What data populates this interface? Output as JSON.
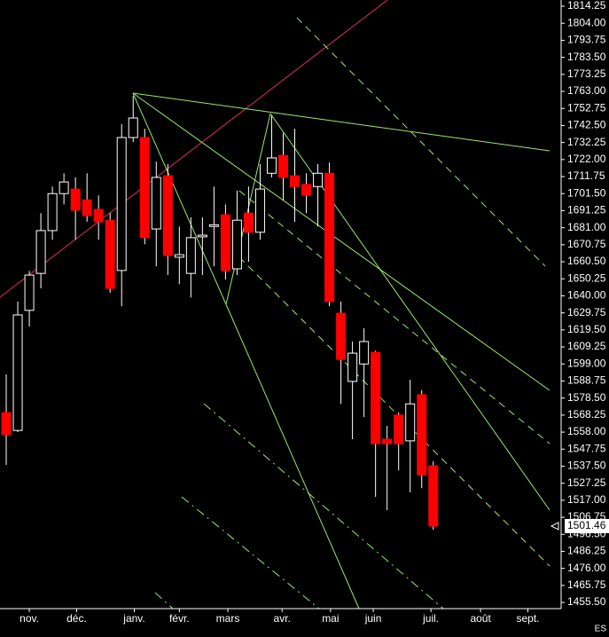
{
  "chart_data": {
    "type": "candlestick",
    "symbol": "ES",
    "last_price": 1501.46,
    "up_color": "#000000",
    "down_color": "#ff0000",
    "x": [
      0,
      1,
      2,
      3,
      4,
      5,
      6,
      7,
      8,
      9,
      10,
      11,
      12,
      13,
      14,
      15,
      16,
      17,
      18,
      19,
      20,
      21,
      22,
      23,
      24,
      25,
      26,
      27,
      28,
      29,
      30,
      31,
      32,
      33,
      34,
      35,
      36,
      37
    ],
    "open": [
      1569.75,
      1559,
      1631.25,
      1653.5,
      1679.25,
      1701.5,
      1704.25,
      1697.75,
      1692,
      1685.5,
      1655.25,
      1735.25,
      1735.25,
      1680.25,
      1712.25,
      1663.25,
      1653.5,
      1675.5,
      1681.75,
      1688.75,
      1656.25,
      1689.75,
      1678.25,
      1713.75,
      1724.5,
      1712.25,
      1707,
      1705.75,
      1713.75,
      1629.5,
      1588.5,
      1599,
      1606,
      1553.75,
      1568.25,
      1552.75,
      1580.5,
      1537.75
    ],
    "high": [
      1592.75,
      1636.5,
      1655,
      1689.75,
      1705.75,
      1713.75,
      1711.25,
      1713.75,
      1700.5,
      1689.75,
      1743.25,
      1760.25,
      1740.5,
      1720.75,
      1719.25,
      1681.75,
      1687.25,
      1687.25,
      1705.75,
      1695,
      1703.25,
      1705.75,
      1719.25,
      1748.5,
      1738,
      1740.5,
      1713.75,
      1719.25,
      1720.25,
      1636.5,
      1612.5,
      1620.5,
      1607,
      1561.75,
      1569.75,
      1589.5,
      1583.25,
      1540.5
    ],
    "low": [
      1538.25,
      1558,
      1621.5,
      1644.5,
      1673.75,
      1695,
      1673.75,
      1684.5,
      1673.75,
      1641.75,
      1633.75,
      1732.5,
      1671,
      1657.75,
      1652.5,
      1647,
      1639,
      1652.5,
      1657.75,
      1649.75,
      1652.5,
      1660.5,
      1673.75,
      1711.25,
      1697.75,
      1684.5,
      1689.75,
      1681.75,
      1633.75,
      1575,
      1553.75,
      1567,
      1519,
      1511,
      1535,
      1521.75,
      1524.25,
      1499.25
    ],
    "close": [
      1556.5,
      1628.5,
      1652.5,
      1679.25,
      1701.5,
      1708.5,
      1691.5,
      1688.25,
      1684.5,
      1644.5,
      1735.25,
      1747,
      1675,
      1711.25,
      1664.25,
      1664.75,
      1675,
      1676.5,
      1682.75,
      1655.25,
      1685.5,
      1678.25,
      1704.25,
      1723,
      1711.25,
      1705.75,
      1700.5,
      1713.75,
      1636.5,
      1601.75,
      1605.5,
      1612.5,
      1551,
      1551,
      1551,
      1575,
      1532.25,
      1501.46
    ],
    "xlim": [
      -0.54,
      48.08
    ],
    "xticks": [
      {
        "value": 2,
        "label": "nov."
      },
      {
        "value": 6.1,
        "label": "déc."
      },
      {
        "value": 11.1,
        "label": "janv."
      },
      {
        "value": 15,
        "label": "févr."
      },
      {
        "value": 19.2,
        "label": "mars"
      },
      {
        "value": 23.9,
        "label": "avr."
      },
      {
        "value": 28.1,
        "label": "mai"
      },
      {
        "value": 31.8,
        "label": "juin"
      },
      {
        "value": 36.8,
        "label": "juil."
      },
      {
        "value": 41.1,
        "label": "août"
      },
      {
        "value": 45.2,
        "label": "sept."
      }
    ],
    "ylim": [
      1451.8,
      1818
    ],
    "yticks": [
      1814.25,
      {
        "value": 1804,
        "label": "1804.00"
      },
      1793.75,
      {
        "value": 1783.5,
        "label": "1783.50"
      },
      1773.25,
      {
        "value": 1763,
        "label": "1763.00"
      },
      1752.75,
      {
        "value": 1742.5,
        "label": "1742.50"
      },
      1732.25,
      {
        "value": 1722,
        "label": "1722.00"
      },
      1711.75,
      {
        "value": 1701.5,
        "label": "1701.50"
      },
      1691.25,
      {
        "value": 1681,
        "label": "1681.00"
      },
      1670.75,
      {
        "value": 1660.5,
        "label": "1660.50"
      },
      1650.25,
      {
        "value": 1640,
        "label": "1640.00"
      },
      1629.75,
      {
        "value": 1619.5,
        "label": "1619.50"
      },
      1609.25,
      {
        "value": 1599,
        "label": "1599.00"
      },
      1588.75,
      {
        "value": 1578.5,
        "label": "1578.50"
      },
      1568.25,
      {
        "value": 1558,
        "label": "1558.00"
      },
      1547.75,
      {
        "value": 1537.5,
        "label": "1537.50"
      },
      1527.25,
      {
        "value": 1517,
        "label": "1517.00"
      },
      1506.75,
      {
        "value": 1496.5,
        "label": "1496.50"
      },
      1486.25,
      {
        "value": 1476,
        "label": "1476.00"
      },
      1465.75,
      {
        "value": 1455.5,
        "label": "1455.50"
      }
    ]
  }
}
